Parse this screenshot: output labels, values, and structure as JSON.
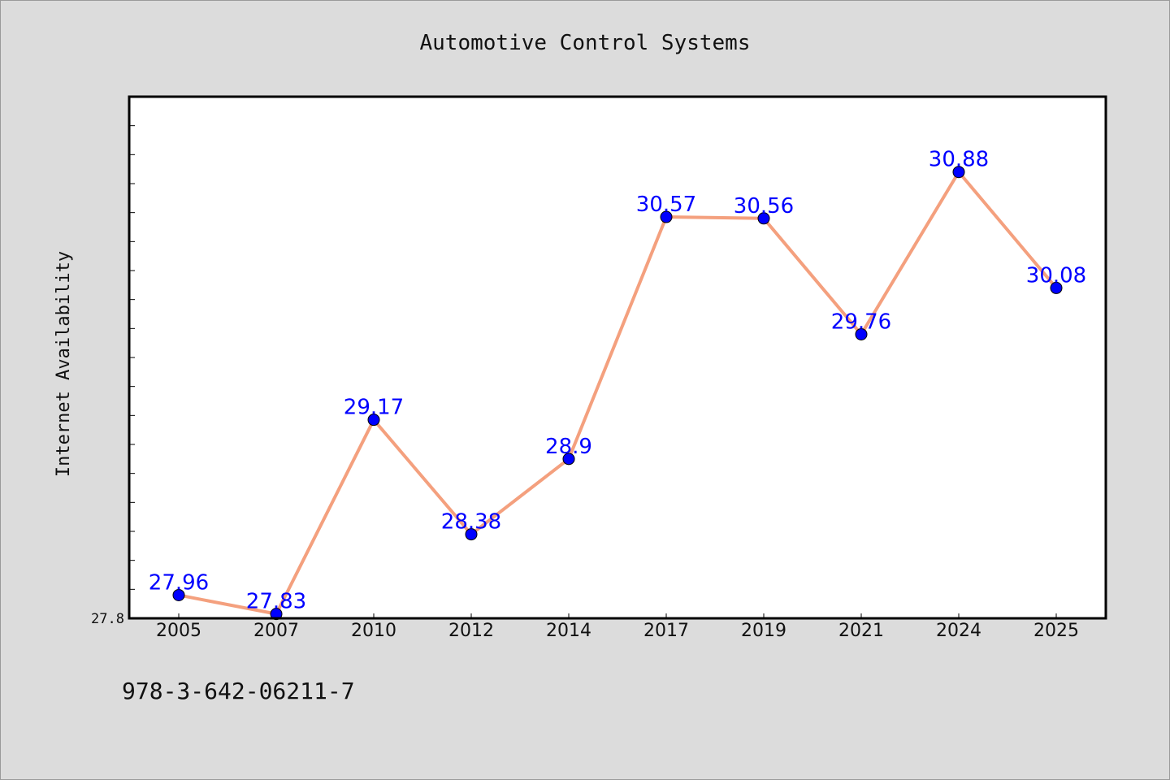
{
  "chart_data": {
    "type": "line",
    "title": "Automotive Control Systems",
    "ylabel": "Internet Availability",
    "xlabel": "",
    "categories": [
      "2005",
      "2007",
      "2010",
      "2012",
      "2014",
      "2017",
      "2019",
      "2021",
      "2024",
      "2025"
    ],
    "series": [
      {
        "values": [
          27.96,
          27.83,
          29.17,
          28.38,
          28.9,
          30.57,
          30.56,
          29.76,
          30.88,
          30.08
        ]
      }
    ],
    "ylim": [
      27.8,
      31.4
    ],
    "y_tick_labels": [
      "27.8"
    ],
    "data_labels": [
      "27.96",
      "27.83",
      "29.17",
      "28.38",
      "28.9",
      "30.57",
      "30.56",
      "29.76",
      "30.88",
      "30.08"
    ],
    "line_color": "#f4a07e",
    "marker_color": "#0000ff",
    "label_color": "#0000ff",
    "grid": false,
    "legend": "none"
  },
  "footnote": "978-3-642-06211-7"
}
